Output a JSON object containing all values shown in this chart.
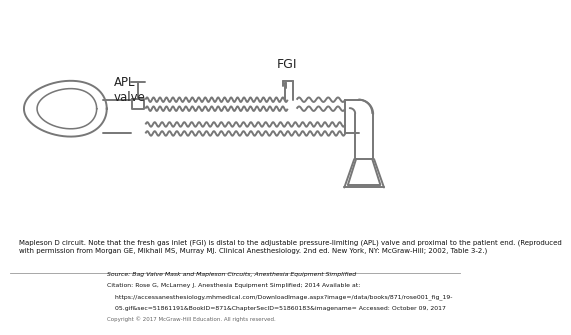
{
  "bg_color": "#ffffff",
  "lc": "#777777",
  "tc": "#222222",
  "lw": 1.4,
  "apl_label": "APL\nvalve",
  "fgi_label": "FGI",
  "caption": "Mapleson D circuit. Note that the fresh gas inlet (FGI) is distal to the adjustable pressure-limiting (APL) valve and proximal to the patient end. (Reproduced\nwith permission from Morgan GE, Mikhail MS, Murray MJ. Clinical Anesthesiology. 2nd ed. New York, NY: McGraw-Hill; 2002, Table 3-2.)",
  "src1": "Source: Bag Valve Mask and Mapleson Circuits, Anesthesia Equipment Simplified",
  "src2": "Citation: Rose G, McLarney J. Anesthesia Equipment Simplified; 2014 Available at:",
  "src3": "https://accessanesthesiology.mhmedical.com/DownloadImage.aspx?image=/data/books/871/rose001_fig_19-",
  "src4": "05.gif&sec=51861191&BookID=871&ChapterSecID=51860183&imagename= Accessed: October 09, 2017",
  "src5": "Copyright © 2017 McGraw-Hill Education. All rights reserved.",
  "logo_bg": "#cc2222"
}
